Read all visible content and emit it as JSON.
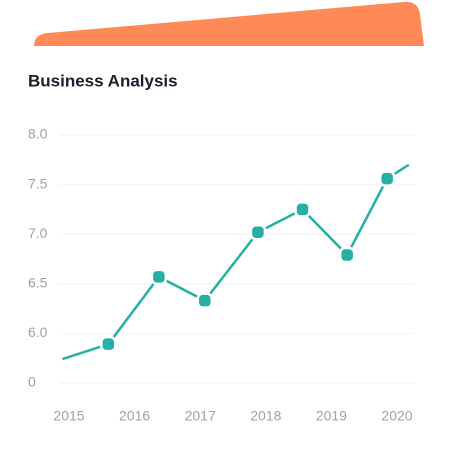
{
  "chart_data": {
    "type": "line",
    "title": "Business Analysis",
    "x": [
      2014.9,
      2015.6,
      2016.37,
      2017.07,
      2017.88,
      2018.56,
      2019.24,
      2019.85,
      2020.18
    ],
    "values": [
      2.9,
      4.7,
      6.57,
      6.33,
      7.02,
      7.25,
      6.79,
      7.56,
      7.7
    ],
    "color": "#26b0a3",
    "xticks": [
      2015,
      2016,
      2017,
      2018,
      2019,
      2020
    ],
    "yticks": [
      {
        "value": 8,
        "label": "8.0"
      },
      7.5,
      {
        "value": 7,
        "label": "7.0"
      },
      6.5,
      {
        "value": 6,
        "label": "6.0"
      },
      0
    ],
    "grid": true
  }
}
